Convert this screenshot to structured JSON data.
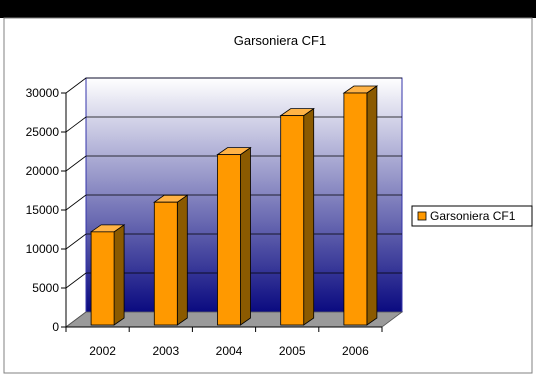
{
  "chart_data": {
    "type": "bar",
    "title": "Garsoniera CF1",
    "categories": [
      "2002",
      "2003",
      "2004",
      "2005",
      "2006"
    ],
    "series": [
      {
        "name": "Garsoniera CF1",
        "values": [
          12200,
          16000,
          22100,
          27100,
          30000
        ]
      }
    ],
    "yticks": [
      "0",
      "5000",
      "10000",
      "15000",
      "20000",
      "25000",
      "30000"
    ],
    "ylim": [
      0,
      30000
    ],
    "grid": true,
    "legend_position": "right",
    "three_d": true,
    "colors": {
      "bar_front": "#FF9900",
      "bar_side": "#8B5A00",
      "bar_top": "#FFB347",
      "wall_top": "#FFFFFF",
      "wall_bottom": "#0A0A80",
      "floor": "#9A9A9A",
      "frame_top": "#000000"
    }
  }
}
